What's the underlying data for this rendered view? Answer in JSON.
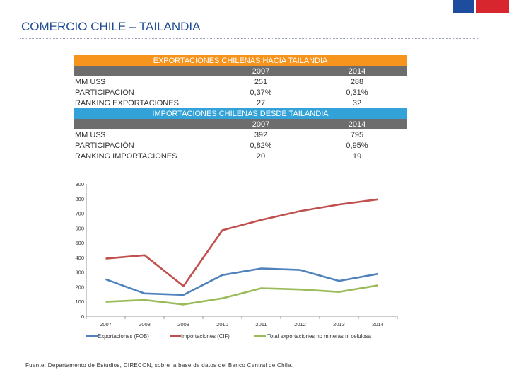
{
  "slide": {
    "title": "COMERCIO CHILE – TAILANDIA",
    "footnote": "Fuente: Departamento de Estudios, DIRECON, sobre la base de datos del Banco Central de Chile."
  },
  "colors": {
    "title": "#1f4e93",
    "export_band": "#f7941d",
    "import_band": "#33a2d8",
    "year_band": "#6d6d6d",
    "flag_blue": "#1d4d9c",
    "flag_red": "#d7262e"
  },
  "exports_table": {
    "header": "EXPORTACIONES CHILENAS HACIA TAILANDIA",
    "years": [
      "2007",
      "2014"
    ],
    "rows": [
      {
        "label": "MM US$",
        "v2007": "251",
        "v2014": "288"
      },
      {
        "label": "PARTICIPACION",
        "v2007": "0,37%",
        "v2014": "0,31%"
      },
      {
        "label": "RANKING EXPORTACIONES",
        "v2007": "27",
        "v2014": "32"
      }
    ]
  },
  "imports_table": {
    "header": "IMPORTACIONES CHILENAS DESDE TAILANDIA",
    "years": [
      "2007",
      "2014"
    ],
    "rows": [
      {
        "label": "MM US$",
        "v2007": "392",
        "v2014": "795"
      },
      {
        "label": "PARTICIPACIÓN",
        "v2007": "0,82%",
        "v2014": "0,95%"
      },
      {
        "label": "RANKING IMPORTACIONES",
        "v2007": "20",
        "v2014": "19"
      }
    ]
  },
  "chart_data": {
    "type": "line",
    "title": "",
    "xlabel": "",
    "ylabel": "",
    "x": [
      "2007",
      "2008",
      "2009",
      "2010",
      "2011",
      "2012",
      "2013",
      "2014"
    ],
    "ylim": [
      0,
      900
    ],
    "yticks": [
      "0",
      "100",
      "200",
      "300",
      "400",
      "500",
      "600",
      "700",
      "800",
      "900"
    ],
    "grid": false,
    "legend": "bottom",
    "series": [
      {
        "name": "Exportaciones (FOB)",
        "color": "#4f81bd",
        "values": [
          251,
          155,
          145,
          280,
          325,
          315,
          240,
          288
        ]
      },
      {
        "name": "Importaciones (CIF)",
        "color": "#c0504d",
        "values": [
          392,
          415,
          205,
          585,
          655,
          715,
          760,
          795
        ]
      },
      {
        "name": "Total exportaciones no mineras ni celulosa",
        "color": "#9bbb59",
        "values": [
          98,
          110,
          80,
          122,
          190,
          182,
          165,
          210
        ]
      }
    ]
  }
}
